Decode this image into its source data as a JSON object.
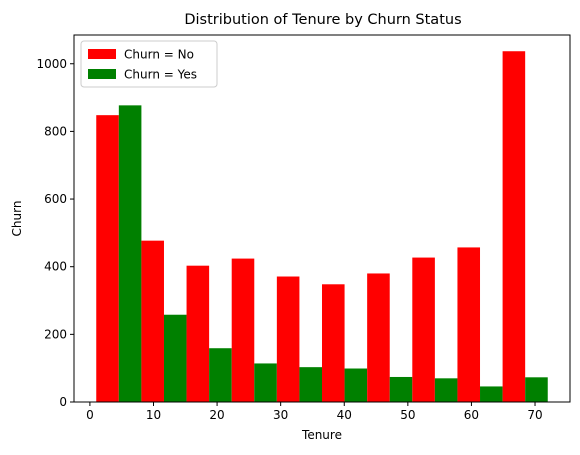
{
  "chart_data": {
    "type": "bar",
    "title": "Distribution of Tenure by Churn Status",
    "xlabel": "Tenure",
    "ylabel": "Churn",
    "xlim": [
      -2.5,
      75.5
    ],
    "ylim": [
      0,
      1085
    ],
    "xticks": [
      0,
      10,
      20,
      30,
      40,
      50,
      60,
      70
    ],
    "yticks": [
      0,
      200,
      400,
      600,
      800,
      1000
    ],
    "bins": [
      [
        1.0,
        8.1
      ],
      [
        8.1,
        15.2
      ],
      [
        15.2,
        22.3
      ],
      [
        22.3,
        29.4
      ],
      [
        29.4,
        36.5
      ],
      [
        36.5,
        43.6
      ],
      [
        43.6,
        50.7
      ],
      [
        50.7,
        57.8
      ],
      [
        57.8,
        64.9
      ],
      [
        64.9,
        72.0
      ]
    ],
    "series": [
      {
        "name": "Churn = No",
        "color": "#ff0000",
        "values": [
          848,
          477,
          403,
          424,
          371,
          348,
          380,
          427,
          457,
          1037
        ]
      },
      {
        "name": "Churn = Yes",
        "color": "#008000",
        "values": [
          877,
          258,
          159,
          114,
          103,
          99,
          74,
          70,
          46,
          73
        ]
      }
    ],
    "legend": {
      "placement": "top-left"
    },
    "grid": false
  }
}
